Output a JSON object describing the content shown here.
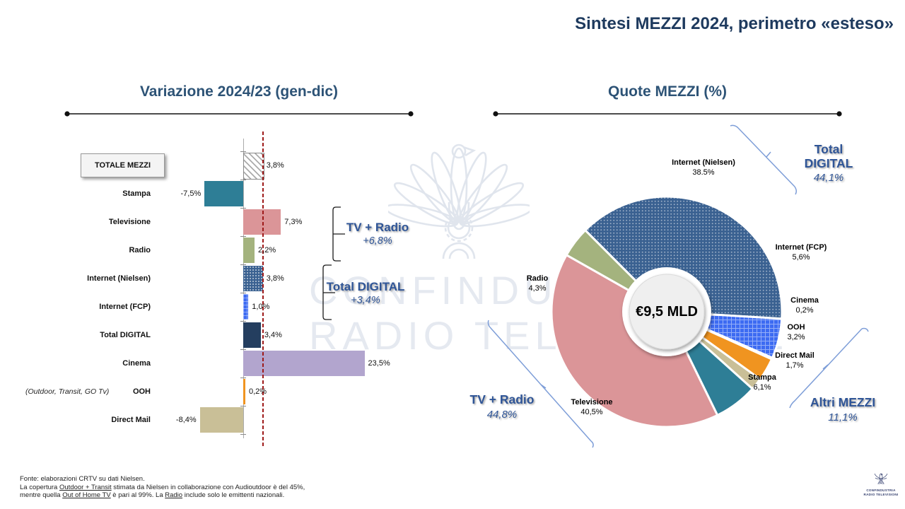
{
  "page": {
    "title": "Sintesi MEZZI 2024, perimetro «esteso»"
  },
  "watermark": {
    "line1": "CONFINDUSTRIA",
    "line2": "RADIO TELEVISIONE"
  },
  "logo": {
    "line1": "CONFINDUSTRIA",
    "line2": "RADIO TELEVISIONI"
  },
  "footer": {
    "lines": [
      [
        {
          "t": "Fonte: elaborazioni CRTV su dati Nielsen."
        }
      ],
      [
        {
          "t": "La copertura "
        },
        {
          "t": "Outdoor + Transit",
          "u": true
        },
        {
          "t": " stimata da Nielsen in collaborazione con Audioutdoor è del 45%,"
        }
      ],
      [
        {
          "t": "mentre quella "
        },
        {
          "t": "Out of Home TV",
          "u": true
        },
        {
          "t": " è pari al 99%. La "
        },
        {
          "t": "Radio",
          "u": true
        },
        {
          "t": " include solo le emittenti nazionali."
        }
      ]
    ]
  },
  "chart_data": [
    {
      "type": "bar",
      "orientation": "horizontal",
      "title": "Variazione 2024/23 (gen-dic)",
      "unit": "%",
      "rows": [
        {
          "category": "TOTALE MEZZI",
          "value": 3.8,
          "label": "3,8%",
          "color": "#FFFFFF",
          "pattern": "hatch",
          "highlight": true
        },
        {
          "category": "Stampa",
          "value": -7.5,
          "label": "-7,5%",
          "color": "#2E7E96"
        },
        {
          "category": "Televisione",
          "value": 7.3,
          "label": "7,3%",
          "color": "#DB9598"
        },
        {
          "category": "Radio",
          "value": 2.2,
          "label": "2,2%",
          "color": "#A4B37E"
        },
        {
          "category": "Internet (Nielsen)",
          "value": 3.8,
          "label": "3,8%",
          "color": "#3A6191",
          "pattern": "dots"
        },
        {
          "category": "Internet (FCP)",
          "value": 1.0,
          "label": "1,0%",
          "color": "#3D6BF2",
          "pattern": "grid"
        },
        {
          "category": "Total DIGITAL",
          "value": 3.4,
          "label": "3,4%",
          "color": "#243E5F"
        },
        {
          "category": "Cinema",
          "value": 23.5,
          "label": "23,5%",
          "color": "#B2A5CE"
        },
        {
          "category": "OOH",
          "value": 0.2,
          "label": "0,2%",
          "color": "#F09420"
        },
        {
          "category": "Direct Mail",
          "value": -8.4,
          "label": "-8,4%",
          "color": "#C9BF97"
        }
      ],
      "side_note": {
        "text": "(Outdoor, Transit, GO Tv)",
        "category": "OOH"
      },
      "reference_line": {
        "value": 3.8,
        "color": "#9E1A1A",
        "style": "dashed"
      },
      "annotations": [
        {
          "label": "TV + Radio",
          "value": "+6,8%"
        },
        {
          "label": "Total DIGITAL",
          "value": "+3,4%"
        }
      ]
    },
    {
      "type": "donut",
      "title": "Quote MEZZI (%)",
      "center_label": "€9,5 MLD",
      "start_angle_deg": -45,
      "segments": [
        {
          "name": "Internet (Nielsen)",
          "value": 38.5,
          "label": "38.5%",
          "color": "#3A6191",
          "pattern": "dots"
        },
        {
          "name": "Internet (FCP)",
          "value": 5.6,
          "label": "5,6%",
          "color": "#3D6BF2",
          "pattern": "grid"
        },
        {
          "name": "Cinema",
          "value": 0.2,
          "label": "0,2%",
          "color": "#B2A5CE"
        },
        {
          "name": "OOH",
          "value": 3.2,
          "label": "3,2%",
          "color": "#F09420"
        },
        {
          "name": "Direct Mail",
          "value": 1.7,
          "label": "1,7%",
          "color": "#C9BF97"
        },
        {
          "name": "Stampa",
          "value": 6.1,
          "label": "6,1%",
          "color": "#2E7E96"
        },
        {
          "name": "Televisione",
          "value": 40.5,
          "label": "40,5%",
          "color": "#DB9598"
        },
        {
          "name": "Radio",
          "value": 4.3,
          "label": "4,3%",
          "color": "#A4B37E"
        }
      ],
      "callouts": [
        {
          "label": "Total DIGITAL",
          "value": "44,1%"
        },
        {
          "label": "TV + Radio",
          "value": "44,8%"
        },
        {
          "label": "Altri MEZZI",
          "value": "11,1%"
        }
      ]
    }
  ]
}
